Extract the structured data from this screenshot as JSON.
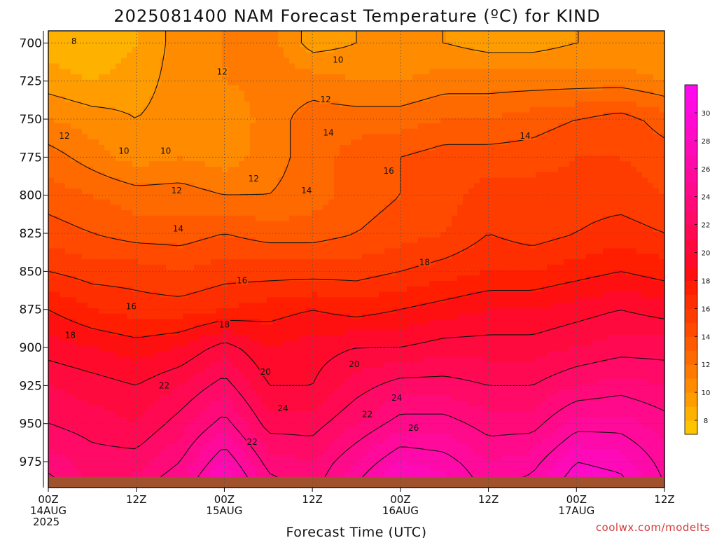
{
  "chart_data": {
    "type": "heatmap",
    "title": "2025081400 NAM Forecast Temperature (ºC) for KIND",
    "xlabel": "Forecast Time (UTC)",
    "ylabel": "",
    "credit": "coolwx.com/modelts",
    "x_ticks": [
      {
        "hours": 0,
        "lines": [
          "00Z",
          "14AUG",
          "2025"
        ]
      },
      {
        "hours": 12,
        "lines": [
          "12Z"
        ]
      },
      {
        "hours": 24,
        "lines": [
          "00Z",
          "15AUG"
        ]
      },
      {
        "hours": 36,
        "lines": [
          "12Z"
        ]
      },
      {
        "hours": 48,
        "lines": [
          "00Z",
          "16AUG"
        ]
      },
      {
        "hours": 60,
        "lines": [
          "12Z"
        ]
      },
      {
        "hours": 72,
        "lines": [
          "00Z",
          "17AUG"
        ]
      },
      {
        "hours": 84,
        "lines": [
          "12Z"
        ]
      }
    ],
    "xlim": [
      0,
      84
    ],
    "y_ticks": [
      700,
      725,
      750,
      775,
      800,
      825,
      850,
      875,
      900,
      925,
      950,
      975
    ],
    "ylim": [
      992,
      692
    ],
    "ground_level_hpa": 985,
    "times_h": [
      0,
      6,
      12,
      18,
      24,
      30,
      36,
      42,
      48,
      54,
      60,
      66,
      72,
      78,
      84
    ],
    "levels_hpa": [
      700,
      725,
      750,
      775,
      800,
      825,
      850,
      875,
      900,
      925,
      950,
      975,
      990
    ],
    "temperature_c": [
      [
        8.5,
        8.0,
        9.0,
        10.5,
        11.0,
        11.5,
        9.5,
        10.0,
        10.0,
        10.0,
        9.5,
        9.5,
        10.0,
        10.0,
        10.0
      ],
      [
        9.5,
        9.0,
        9.5,
        10.5,
        11.0,
        11.5,
        11.5,
        11.0,
        11.0,
        11.5,
        11.5,
        11.5,
        11.5,
        11.5,
        11.0
      ],
      [
        11.0,
        10.5,
        10.0,
        10.5,
        10.0,
        11.5,
        12.5,
        12.5,
        12.5,
        13.0,
        13.0,
        13.5,
        14.0,
        14.5,
        13.5
      ],
      [
        12.5,
        11.5,
        10.5,
        11.0,
        10.5,
        11.5,
        12.5,
        13.5,
        14.0,
        14.5,
        14.5,
        14.5,
        15.0,
        15.0,
        14.5
      ],
      [
        13.5,
        13.0,
        12.5,
        12.5,
        12.0,
        12.0,
        12.5,
        13.5,
        14.0,
        14.5,
        15.5,
        15.5,
        15.5,
        15.5,
        15.0
      ],
      [
        14.5,
        14.0,
        13.5,
        13.5,
        14.0,
        13.5,
        13.5,
        14.0,
        14.5,
        15.0,
        16.0,
        15.5,
        16.0,
        16.5,
        16.0
      ],
      [
        16.0,
        15.5,
        15.5,
        15.0,
        15.5,
        15.5,
        15.5,
        15.5,
        16.0,
        16.5,
        17.0,
        17.0,
        17.5,
        18.0,
        17.5
      ],
      [
        18.0,
        17.0,
        16.5,
        16.5,
        17.0,
        17.5,
        18.0,
        17.5,
        18.0,
        18.5,
        19.0,
        19.0,
        19.5,
        20.0,
        19.5
      ],
      [
        19.5,
        19.0,
        18.5,
        19.0,
        20.5,
        19.0,
        19.5,
        20.0,
        20.0,
        20.5,
        20.5,
        20.5,
        21.0,
        21.5,
        21.5
      ],
      [
        21.0,
        20.5,
        20.0,
        21.0,
        22.5,
        20.0,
        20.0,
        21.5,
        22.5,
        22.5,
        22.0,
        22.0,
        23.0,
        23.5,
        23.0
      ],
      [
        22.0,
        21.5,
        21.0,
        22.5,
        24.5,
        21.5,
        21.5,
        23.0,
        24.5,
        24.5,
        23.5,
        23.5,
        25.5,
        25.5,
        24.5
      ],
      [
        23.5,
        22.5,
        22.5,
        24.0,
        27.0,
        23.5,
        23.0,
        25.0,
        27.0,
        26.5,
        25.0,
        25.5,
        28.0,
        27.5,
        25.5
      ],
      [
        24.5,
        23.0,
        23.5,
        25.0,
        28.5,
        24.5,
        23.5,
        26.0,
        28.5,
        27.5,
        25.5,
        26.5,
        29.0,
        28.5,
        26.0
      ]
    ],
    "contour_levels": [
      8,
      10,
      12,
      14,
      16,
      18,
      20,
      22,
      24,
      26,
      28,
      30
    ],
    "contour_labels": [
      {
        "text": "8",
        "t": 3.5,
        "p": 699
      },
      {
        "text": "10",
        "t": 10.3,
        "p": 771
      },
      {
        "text": "10",
        "t": 16.0,
        "p": 771
      },
      {
        "text": "10",
        "t": 39.5,
        "p": 711
      },
      {
        "text": "12",
        "t": 2.2,
        "p": 761
      },
      {
        "text": "12",
        "t": 17.5,
        "p": 797
      },
      {
        "text": "12",
        "t": 23.7,
        "p": 719
      },
      {
        "text": "12",
        "t": 28.0,
        "p": 789
      },
      {
        "text": "12",
        "t": 37.8,
        "p": 737
      },
      {
        "text": "14",
        "t": 17.7,
        "p": 822
      },
      {
        "text": "14",
        "t": 35.2,
        "p": 797
      },
      {
        "text": "14",
        "t": 38.2,
        "p": 759
      },
      {
        "text": "14",
        "t": 65.0,
        "p": 761
      },
      {
        "text": "16",
        "t": 11.3,
        "p": 873
      },
      {
        "text": "16",
        "t": 26.4,
        "p": 856
      },
      {
        "text": "16",
        "t": 46.4,
        "p": 784
      },
      {
        "text": "18",
        "t": 3.0,
        "p": 892
      },
      {
        "text": "18",
        "t": 24.0,
        "p": 885
      },
      {
        "text": "18",
        "t": 51.3,
        "p": 844
      },
      {
        "text": "20",
        "t": 29.6,
        "p": 916
      },
      {
        "text": "20",
        "t": 41.7,
        "p": 911
      },
      {
        "text": "22",
        "t": 15.8,
        "p": 925
      },
      {
        "text": "22",
        "t": 27.8,
        "p": 962
      },
      {
        "text": "22",
        "t": 43.5,
        "p": 944
      },
      {
        "text": "24",
        "t": 32.0,
        "p": 940
      },
      {
        "text": "24",
        "t": 47.5,
        "p": 933
      },
      {
        "text": "26",
        "t": 49.8,
        "p": 953
      }
    ],
    "colorbar": {
      "labels": [
        8,
        10,
        12,
        14,
        16,
        18,
        20,
        22,
        24,
        26,
        28,
        30
      ],
      "bins": [
        {
          "min": 7,
          "max": 8,
          "color": "#ffc400"
        },
        {
          "min": 8,
          "max": 9,
          "color": "#ffb100"
        },
        {
          "min": 9,
          "max": 10,
          "color": "#ff9d00"
        },
        {
          "min": 10,
          "max": 11,
          "color": "#ff8c00"
        },
        {
          "min": 11,
          "max": 12,
          "color": "#ff7a00"
        },
        {
          "min": 12,
          "max": 13,
          "color": "#ff6a00"
        },
        {
          "min": 13,
          "max": 14,
          "color": "#ff5a00"
        },
        {
          "min": 14,
          "max": 15,
          "color": "#ff4a00"
        },
        {
          "min": 15,
          "max": 16,
          "color": "#ff3c00"
        },
        {
          "min": 16,
          "max": 17,
          "color": "#ff2e00"
        },
        {
          "min": 17,
          "max": 18,
          "color": "#ff1e00"
        },
        {
          "min": 18,
          "max": 19,
          "color": "#ff1010"
        },
        {
          "min": 19,
          "max": 20,
          "color": "#ff0a2a"
        },
        {
          "min": 20,
          "max": 21,
          "color": "#ff0a3e"
        },
        {
          "min": 21,
          "max": 22,
          "color": "#ff0a52"
        },
        {
          "min": 22,
          "max": 23,
          "color": "#ff0a66"
        },
        {
          "min": 23,
          "max": 24,
          "color": "#ff0a78"
        },
        {
          "min": 24,
          "max": 25,
          "color": "#ff0a8a"
        },
        {
          "min": 25,
          "max": 26,
          "color": "#ff0a9a"
        },
        {
          "min": 26,
          "max": 27,
          "color": "#ff0aaa"
        },
        {
          "min": 27,
          "max": 28,
          "color": "#ff0ab8"
        },
        {
          "min": 28,
          "max": 29,
          "color": "#ff0ac6"
        },
        {
          "min": 29,
          "max": 30,
          "color": "#ff0ad4"
        },
        {
          "min": 30,
          "max": 31,
          "color": "#ff0ae0"
        },
        {
          "min": 31,
          "max": 32,
          "color": "#ff0aec"
        }
      ]
    },
    "ground_color": "#a0522d",
    "grid": true
  }
}
